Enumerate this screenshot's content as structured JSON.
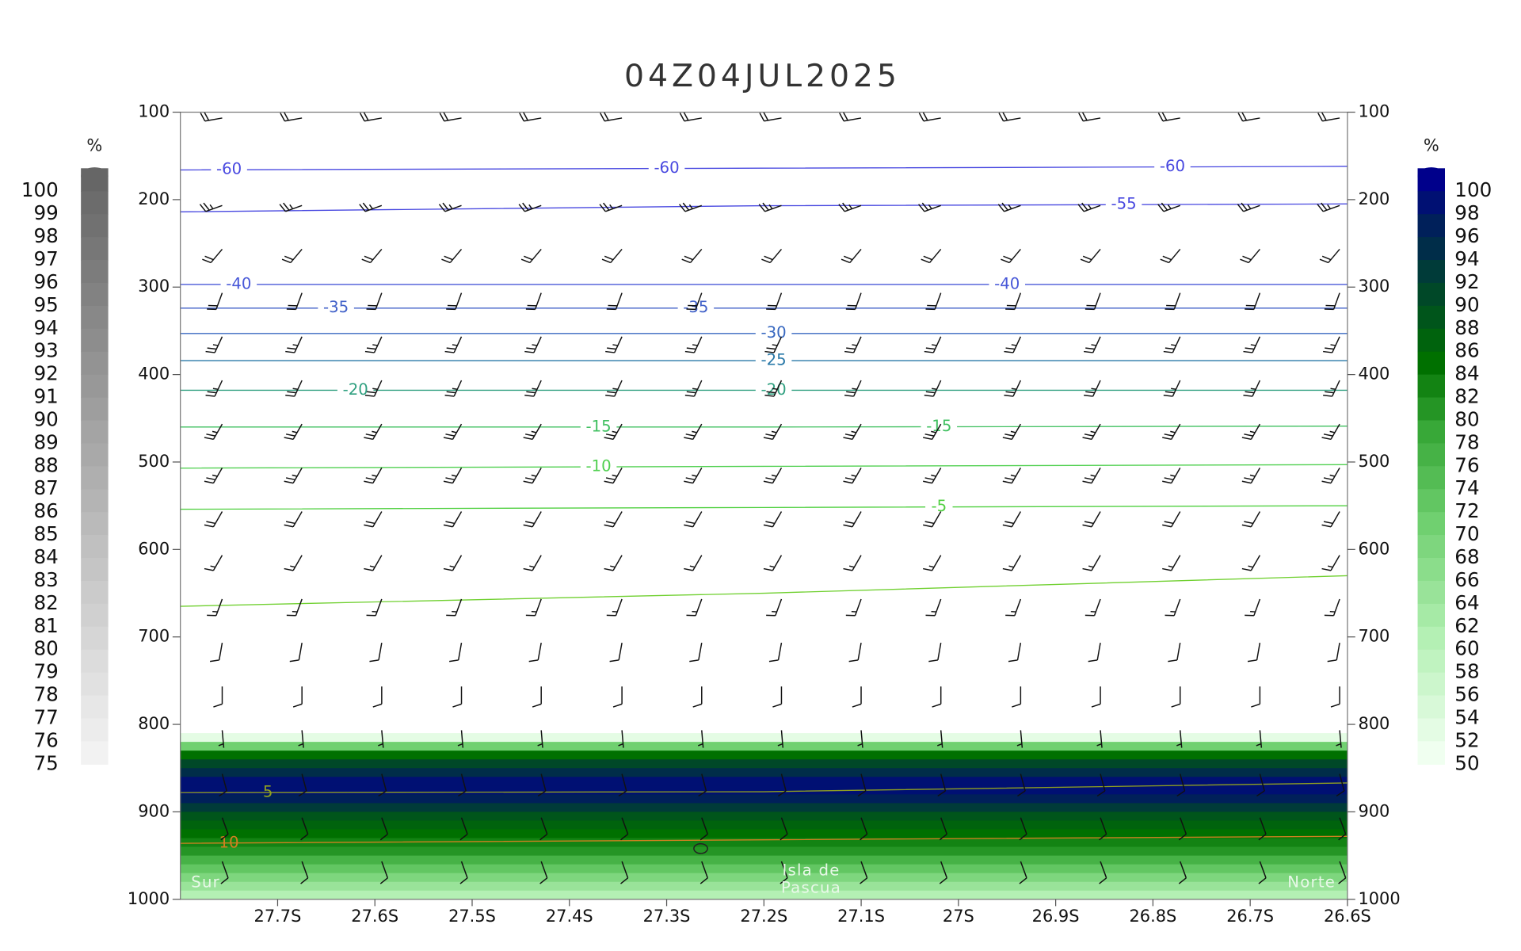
{
  "chart_data": {
    "type": "cross-section",
    "title": "04Z04JUL2025",
    "xlim": [
      -27.8,
      -26.6
    ],
    "xticks": [
      {
        "value": -27.7,
        "label": "27.7S"
      },
      {
        "value": -27.6,
        "label": "27.6S"
      },
      {
        "value": -27.5,
        "label": "27.5S"
      },
      {
        "value": -27.4,
        "label": "27.4S"
      },
      {
        "value": -27.3,
        "label": "27.3S"
      },
      {
        "value": -27.2,
        "label": "27.2S"
      },
      {
        "value": -27.1,
        "label": "27.1S"
      },
      {
        "value": -27.0,
        "label": "27S"
      },
      {
        "value": -26.9,
        "label": "26.9S"
      },
      {
        "value": -26.8,
        "label": "26.8S"
      },
      {
        "value": -26.7,
        "label": "26.7S"
      },
      {
        "value": -26.6,
        "label": "26.6S"
      }
    ],
    "ylim": [
      1000,
      100
    ],
    "yticks": [
      100,
      200,
      300,
      400,
      500,
      600,
      700,
      800,
      900,
      1000
    ],
    "y2lim": [
      1000,
      100
    ],
    "y2ticks": [
      100,
      200,
      300,
      400,
      500,
      600,
      700,
      800,
      900,
      1000
    ],
    "isotherms": {
      "x": [
        -27.8,
        -27.2,
        -26.6
      ],
      "series": [
        {
          "name": "-60",
          "color": "#4848e0",
          "values": [
            166,
            164,
            162
          ]
        },
        {
          "name": "-55",
          "color": "#4848e0",
          "values": [
            214,
            207,
            205
          ]
        },
        {
          "name": "-40",
          "color": "#4858d8",
          "values": [
            297,
            297,
            297
          ]
        },
        {
          "name": "-35",
          "color": "#4060c8",
          "values": [
            324,
            324,
            324
          ]
        },
        {
          "name": "-30",
          "color": "#3868c0",
          "values": [
            353,
            353,
            353
          ]
        },
        {
          "name": "-25",
          "color": "#2878a8",
          "values": [
            384,
            384,
            384
          ]
        },
        {
          "name": "-20",
          "color": "#30a080",
          "values": [
            418,
            418,
            418
          ]
        },
        {
          "name": "-15",
          "color": "#40c060",
          "values": [
            460,
            460,
            459
          ]
        },
        {
          "name": "-10",
          "color": "#50d050",
          "values": [
            507,
            505,
            503
          ]
        },
        {
          "name": "-5",
          "color": "#50d040",
          "values": [
            554,
            552,
            550
          ]
        },
        {
          "color": "#70d030",
          "values": [
            665,
            650,
            630
          ]
        },
        {
          "name": "5",
          "color": "#90a020",
          "values": [
            878,
            877,
            867
          ]
        },
        {
          "name": "10",
          "color": "#d08020",
          "values": [
            936,
            932,
            928
          ]
        }
      ]
    },
    "relative_humidity": {
      "pressure": [
        810,
        820,
        830,
        840,
        850,
        860,
        870,
        880,
        890,
        900,
        910,
        920,
        930,
        940,
        950,
        960,
        970,
        980,
        990
      ],
      "values": [
        52,
        70,
        84,
        90,
        94,
        98,
        98,
        96,
        92,
        88,
        86,
        84,
        82,
        80,
        76,
        72,
        68,
        64,
        60
      ]
    },
    "wind": {
      "x": [
        -27.757,
        -27.675,
        -27.593,
        -27.511,
        -27.429,
        -27.346,
        -27.264,
        -27.182,
        -27.1,
        -27.018,
        -26.936,
        -26.854,
        -26.772,
        -26.69,
        -26.608
      ],
      "pressure": [
        100,
        200,
        250,
        300,
        350,
        400,
        450,
        500,
        550,
        600,
        650,
        700,
        750,
        800,
        850,
        900,
        950
      ],
      "direction": [
        260,
        250,
        220,
        200,
        205,
        205,
        210,
        210,
        210,
        210,
        200,
        190,
        180,
        175,
        165,
        160,
        160
      ],
      "speed": [
        20,
        25,
        20,
        20,
        25,
        25,
        25,
        25,
        20,
        15,
        15,
        10,
        10,
        5,
        10,
        10,
        10
      ]
    },
    "island_marker": {
      "x": -27.265,
      "pressure": 942
    },
    "annotations": {
      "left": "Sur",
      "center": [
        "Isla de",
        "Pascua"
      ],
      "right": "Norte"
    },
    "colorbar_left": {
      "unit": "%",
      "ticks": [
        100,
        99,
        98,
        97,
        96,
        95,
        94,
        93,
        92,
        91,
        90,
        89,
        88,
        87,
        86,
        85,
        84,
        83,
        82,
        81,
        80,
        79,
        78,
        77,
        76,
        75
      ],
      "color_stops": [
        [
          75,
          "#f2f2f2"
        ],
        [
          100,
          "#666666"
        ]
      ]
    },
    "colorbar_right": {
      "unit": "%",
      "ticks": [
        100,
        98,
        96,
        94,
        92,
        90,
        88,
        86,
        84,
        82,
        80,
        78,
        76,
        74,
        72,
        70,
        68,
        66,
        64,
        62,
        60,
        58,
        56,
        54,
        52,
        50
      ],
      "color_stops": [
        [
          50,
          "#f0fff0"
        ],
        [
          60,
          "#b4f0b4"
        ],
        [
          70,
          "#70d070"
        ],
        [
          78,
          "#38a838"
        ],
        [
          84,
          "#007000"
        ],
        [
          90,
          "#004828"
        ],
        [
          96,
          "#00205a"
        ],
        [
          100,
          "#00008b"
        ]
      ]
    }
  }
}
